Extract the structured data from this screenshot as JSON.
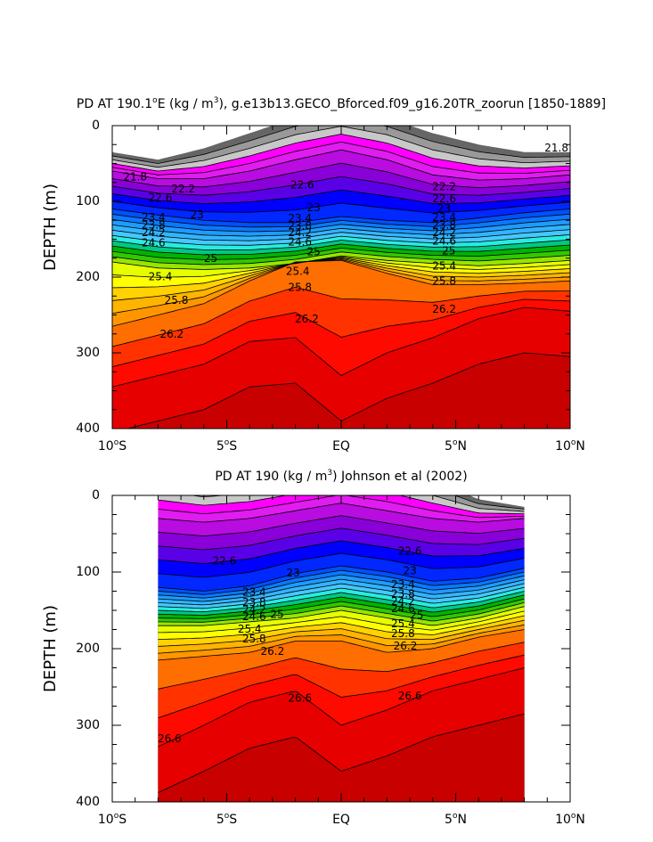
{
  "chart_data": [
    {
      "type": "contour",
      "title": "PD AT 190.1°E (kg / m³), g.e13b13.GECO_Bforced.f09_g16.20TR_zoorun [1850-1889]",
      "title_parts": {
        "pre": "PD AT 190.1",
        "sup1": "o",
        "mid": "E (kg / m",
        "sup2": "3",
        "post": "), g.e13b13.GECO_Bforced.f09_g16.20TR_zoorun [1850-1889]"
      },
      "ylabel": "DEPTH (m)",
      "xlim": [
        -10,
        10
      ],
      "ylim": [
        0,
        400
      ],
      "y_inverted": true,
      "yticks": [
        "0",
        "100",
        "200",
        "300",
        "400"
      ],
      "xticks": [
        {
          "num": "10",
          "sup": "o",
          "hemi": "S"
        },
        {
          "num": "5",
          "sup": "o",
          "hemi": "S"
        },
        {
          "num": "EQ",
          "sup": "",
          "hemi": ""
        },
        {
          "num": "5",
          "sup": "o",
          "hemi": "N"
        },
        {
          "num": "10",
          "sup": "o",
          "hemi": "N"
        }
      ],
      "data_extent_x": [
        -10,
        10
      ],
      "contour_interval": 0.2,
      "fields": {
        "lat_nodes": [
          -10,
          -8,
          -6,
          -4,
          -2,
          0,
          2,
          4,
          6,
          8,
          10
        ],
        "z21": [
          35,
          45,
          30,
          10,
          -10,
          -20,
          -10,
          10,
          25,
          35,
          35
        ],
        "z22": [
          60,
          70,
          70,
          60,
          45,
          32,
          45,
          65,
          72,
          70,
          65
        ],
        "z23": [
          110,
          118,
          125,
          128,
          128,
          120,
          125,
          128,
          122,
          115,
          110
        ],
        "z25": [
          180,
          188,
          190,
          188,
          182,
          172,
          178,
          182,
          185,
          182,
          178
        ],
        "z26": [
          265,
          250,
          235,
          205,
          180,
          178,
          195,
          210,
          210,
          208,
          205
        ],
        "z26_6": [
          345,
          330,
          315,
          285,
          280,
          330,
          300,
          280,
          255,
          240,
          245
        ]
      },
      "color_levels": [
        {
          "v": 21.0,
          "c": "#666666"
        },
        {
          "v": 21.2,
          "c": "#999999"
        },
        {
          "v": 21.4,
          "c": "#c8c8c8"
        },
        {
          "v": 21.6,
          "c": "#ff00ff"
        },
        {
          "v": 21.8,
          "c": "#e11cf0"
        },
        {
          "v": 22.0,
          "c": "#b80ce0"
        },
        {
          "v": 22.2,
          "c": "#8a00d8"
        },
        {
          "v": 22.4,
          "c": "#5a00e6"
        },
        {
          "v": 22.6,
          "c": "#0000ff"
        },
        {
          "v": 22.8,
          "c": "#0028ff"
        },
        {
          "v": 23.0,
          "c": "#0050ff"
        },
        {
          "v": 23.2,
          "c": "#0a78ff"
        },
        {
          "v": 23.4,
          "c": "#1e9bff"
        },
        {
          "v": 23.6,
          "c": "#32b4ff"
        },
        {
          "v": 23.8,
          "c": "#46c8ff"
        },
        {
          "v": 24.0,
          "c": "#28ece0"
        },
        {
          "v": 24.2,
          "c": "#00c882"
        },
        {
          "v": 24.4,
          "c": "#00b400"
        },
        {
          "v": 24.6,
          "c": "#32c800"
        },
        {
          "v": 24.8,
          "c": "#96e600"
        },
        {
          "v": 25.0,
          "c": "#e6ff00"
        },
        {
          "v": 25.2,
          "c": "#ffff00"
        },
        {
          "v": 25.4,
          "c": "#ffd200"
        },
        {
          "v": 25.6,
          "c": "#ffb400"
        },
        {
          "v": 25.8,
          "c": "#ff9600"
        },
        {
          "v": 26.0,
          "c": "#ff6e00"
        },
        {
          "v": 26.2,
          "c": "#ff3200"
        },
        {
          "v": 26.4,
          "c": "#ff0a00"
        },
        {
          "v": 26.6,
          "c": "#e60000"
        },
        {
          "v": 26.8,
          "c": "#c80000"
        }
      ],
      "labels": [
        {
          "text": "21.8",
          "x": -9.0,
          "y": 68
        },
        {
          "text": "21.8",
          "x": 9.4,
          "y": 30
        },
        {
          "text": "22.2",
          "x": -6.9,
          "y": 84
        },
        {
          "text": "22.6",
          "x": -7.9,
          "y": 96
        },
        {
          "text": "23",
          "x": -6.3,
          "y": 118
        },
        {
          "text": "23.4",
          "x": -8.2,
          "y": 122
        },
        {
          "text": "23.8",
          "x": -8.2,
          "y": 132
        },
        {
          "text": "24.2",
          "x": -8.2,
          "y": 142
        },
        {
          "text": "24.6",
          "x": -8.2,
          "y": 155
        },
        {
          "text": "25",
          "x": -5.7,
          "y": 176
        },
        {
          "text": "25.4",
          "x": -7.9,
          "y": 200
        },
        {
          "text": "25.8",
          "x": -7.2,
          "y": 231
        },
        {
          "text": "26.2",
          "x": -7.4,
          "y": 276
        },
        {
          "text": "22.6",
          "x": -1.7,
          "y": 79
        },
        {
          "text": "23",
          "x": -1.2,
          "y": 109
        },
        {
          "text": "23.4",
          "x": -1.8,
          "y": 123
        },
        {
          "text": "23.8",
          "x": -1.8,
          "y": 133
        },
        {
          "text": "24.2",
          "x": -1.8,
          "y": 142
        },
        {
          "text": "24.6",
          "x": -1.8,
          "y": 154
        },
        {
          "text": "25",
          "x": -1.2,
          "y": 167
        },
        {
          "text": "25.4",
          "x": -1.9,
          "y": 193
        },
        {
          "text": "25.8",
          "x": -1.8,
          "y": 214
        },
        {
          "text": "26.2",
          "x": -1.5,
          "y": 256
        },
        {
          "text": "22.2",
          "x": 4.5,
          "y": 81
        },
        {
          "text": "22.6",
          "x": 4.5,
          "y": 97
        },
        {
          "text": "23",
          "x": 4.5,
          "y": 110
        },
        {
          "text": "23.4",
          "x": 4.5,
          "y": 122
        },
        {
          "text": "23.8",
          "x": 4.5,
          "y": 132
        },
        {
          "text": "24.2",
          "x": 4.5,
          "y": 142
        },
        {
          "text": "24.6",
          "x": 4.5,
          "y": 153
        },
        {
          "text": "25",
          "x": 4.7,
          "y": 166
        },
        {
          "text": "25.4",
          "x": 4.5,
          "y": 186
        },
        {
          "text": "25.8",
          "x": 4.5,
          "y": 206
        },
        {
          "text": "26.2",
          "x": 4.5,
          "y": 243
        }
      ]
    },
    {
      "type": "contour",
      "title": "PD AT 190 (kg / m³) Johnson et al (2002)",
      "title_parts": {
        "pre": "PD AT 190 (kg / m",
        "sup1": "",
        "mid": "",
        "sup2": "3",
        "post": ") Johnson et al (2002)"
      },
      "ylabel": "DEPTH (m)",
      "xlim": [
        -10,
        10
      ],
      "ylim": [
        0,
        400
      ],
      "y_inverted": true,
      "yticks": [
        "0",
        "100",
        "200",
        "300",
        "400"
      ],
      "xticks": [
        {
          "num": "10",
          "sup": "o",
          "hemi": "S"
        },
        {
          "num": "5",
          "sup": "o",
          "hemi": "S"
        },
        {
          "num": "EQ",
          "sup": "",
          "hemi": ""
        },
        {
          "num": "5",
          "sup": "o",
          "hemi": "N"
        },
        {
          "num": "10",
          "sup": "o",
          "hemi": "N"
        }
      ],
      "data_extent_x": [
        -8,
        8
      ],
      "contour_interval": 0.2,
      "fields": {
        "lat_nodes": [
          -8,
          -6,
          -4,
          -2,
          0,
          2,
          4,
          6,
          8
        ],
        "z21": [
          -30,
          -20,
          -25,
          -35,
          -45,
          -40,
          -20,
          5,
          15
        ],
        "z22": [
          30,
          35,
          30,
          20,
          10,
          20,
          30,
          35,
          30
        ],
        "z23": [
          120,
          125,
          118,
          102,
          92,
          100,
          112,
          108,
          95
        ],
        "z25": [
          170,
          170,
          165,
          160,
          150,
          160,
          170,
          160,
          145
        ],
        "z26": [
          215,
          210,
          205,
          190,
          190,
          205,
          200,
          185,
          175
        ],
        "z26_6": [
          328,
          300,
          270,
          255,
          300,
          280,
          255,
          240,
          225
        ]
      },
      "color_levels": [
        {
          "v": 21.0,
          "c": "#666666"
        },
        {
          "v": 21.2,
          "c": "#999999"
        },
        {
          "v": 21.4,
          "c": "#c8c8c8"
        },
        {
          "v": 21.6,
          "c": "#ff00ff"
        },
        {
          "v": 21.8,
          "c": "#e11cf0"
        },
        {
          "v": 22.0,
          "c": "#b80ce0"
        },
        {
          "v": 22.2,
          "c": "#8a00d8"
        },
        {
          "v": 22.4,
          "c": "#5a00e6"
        },
        {
          "v": 22.6,
          "c": "#0000ff"
        },
        {
          "v": 22.8,
          "c": "#0028ff"
        },
        {
          "v": 23.0,
          "c": "#0050ff"
        },
        {
          "v": 23.2,
          "c": "#0a78ff"
        },
        {
          "v": 23.4,
          "c": "#1e9bff"
        },
        {
          "v": 23.6,
          "c": "#32b4ff"
        },
        {
          "v": 23.8,
          "c": "#46c8ff"
        },
        {
          "v": 24.0,
          "c": "#28ece0"
        },
        {
          "v": 24.2,
          "c": "#00c882"
        },
        {
          "v": 24.4,
          "c": "#00b400"
        },
        {
          "v": 24.6,
          "c": "#32c800"
        },
        {
          "v": 24.8,
          "c": "#96e600"
        },
        {
          "v": 25.0,
          "c": "#e6ff00"
        },
        {
          "v": 25.2,
          "c": "#ffff00"
        },
        {
          "v": 25.4,
          "c": "#ffd200"
        },
        {
          "v": 25.6,
          "c": "#ffb400"
        },
        {
          "v": 25.8,
          "c": "#ff9600"
        },
        {
          "v": 26.0,
          "c": "#ff6e00"
        },
        {
          "v": 26.2,
          "c": "#ff3200"
        },
        {
          "v": 26.4,
          "c": "#ff0a00"
        },
        {
          "v": 26.6,
          "c": "#e60000"
        },
        {
          "v": 26.8,
          "c": "#c80000"
        }
      ],
      "labels": [
        {
          "text": "22.6",
          "x": -5.1,
          "y": 86
        },
        {
          "text": "23",
          "x": -2.1,
          "y": 102
        },
        {
          "text": "23.4",
          "x": -3.8,
          "y": 127
        },
        {
          "text": "23.8",
          "x": -3.8,
          "y": 140
        },
        {
          "text": "24.2",
          "x": -3.8,
          "y": 150
        },
        {
          "text": "24.6",
          "x": -3.8,
          "y": 159
        },
        {
          "text": "25",
          "x": -2.8,
          "y": 156
        },
        {
          "text": "25.4",
          "x": -4.0,
          "y": 175
        },
        {
          "text": "25.8",
          "x": -3.8,
          "y": 188
        },
        {
          "text": "26.2",
          "x": -3.0,
          "y": 204
        },
        {
          "text": "26.6",
          "x": -1.8,
          "y": 265
        },
        {
          "text": "26.6",
          "x": -7.5,
          "y": 318
        },
        {
          "text": "22.6",
          "x": 3.0,
          "y": 73
        },
        {
          "text": "23",
          "x": 3.0,
          "y": 99
        },
        {
          "text": "23.4",
          "x": 2.7,
          "y": 117
        },
        {
          "text": "23.8",
          "x": 2.7,
          "y": 129
        },
        {
          "text": "24.2",
          "x": 2.7,
          "y": 139
        },
        {
          "text": "24.6",
          "x": 2.7,
          "y": 148
        },
        {
          "text": "25",
          "x": 3.3,
          "y": 157
        },
        {
          "text": "25.4",
          "x": 2.7,
          "y": 168
        },
        {
          "text": "25.8",
          "x": 2.7,
          "y": 181
        },
        {
          "text": "26.2",
          "x": 2.8,
          "y": 197
        },
        {
          "text": "26.6",
          "x": 3.0,
          "y": 262
        }
      ]
    }
  ]
}
